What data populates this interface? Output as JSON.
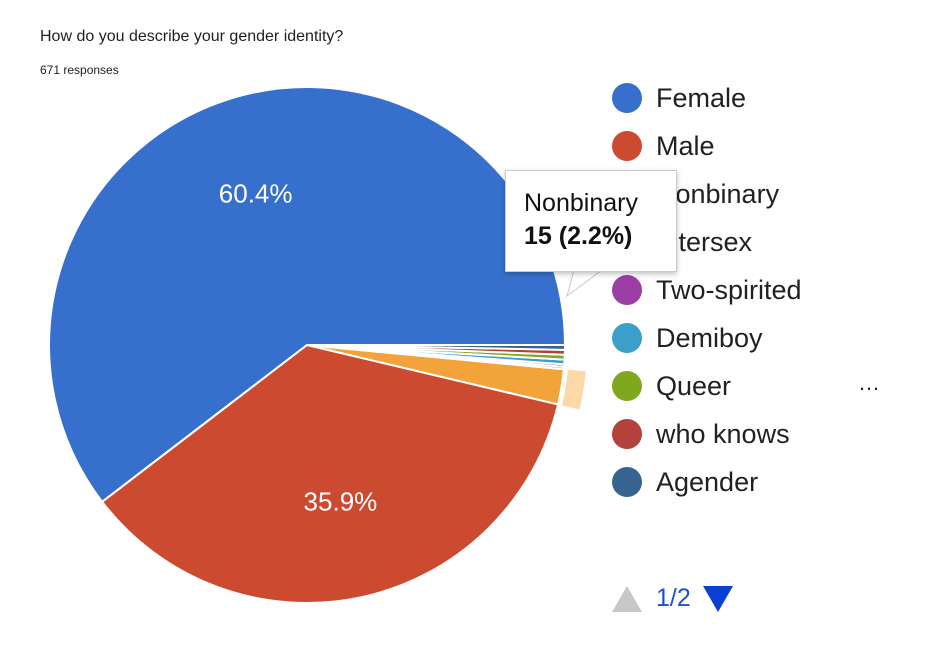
{
  "question": {
    "title": "How do you describe your gender identity?",
    "responses": "671 responses"
  },
  "chart_data": {
    "type": "pie",
    "categories": [
      "Female",
      "Male",
      "Nonbinary",
      "Intersex",
      "Two-spirited",
      "Demiboy",
      "Queer",
      "who knows",
      "Agender"
    ],
    "values": [
      60.4,
      35.9,
      2.2,
      0.15,
      0.15,
      0.3,
      0.3,
      0.3,
      0.3
    ],
    "colors": [
      "#3670cc",
      "#cc4a30",
      "#f2a43a",
      "#1e9d58",
      "#9b3ea6",
      "#3aa0c9",
      "#7fa81f",
      "#b3413c",
      "#36638f"
    ],
    "slice_labels": [
      "60.4%",
      "35.9%",
      "",
      "",
      "",
      "",
      "",
      "",
      ""
    ],
    "highlighted_index": 2,
    "tooltip": {
      "name": "Nonbinary",
      "value": "15 (2.2%)"
    }
  },
  "legend": {
    "items": [
      {
        "label": "Female",
        "color": "#3670cc"
      },
      {
        "label": "Male",
        "color": "#cc4a30"
      },
      {
        "label": "Nonbinary",
        "color": "#f2a43a"
      },
      {
        "label": "Intersex",
        "color": "#1e9d58"
      },
      {
        "label": "Two-spirited",
        "color": "#9b3ea6"
      },
      {
        "label": "Demiboy",
        "color": "#3aa0c9"
      },
      {
        "label": "Queer",
        "color": "#7fa81f"
      },
      {
        "label": "who knows",
        "color": "#b3413c"
      },
      {
        "label": "Agender",
        "color": "#36638f"
      }
    ],
    "more": "…"
  },
  "pager": {
    "label": "1/2"
  }
}
